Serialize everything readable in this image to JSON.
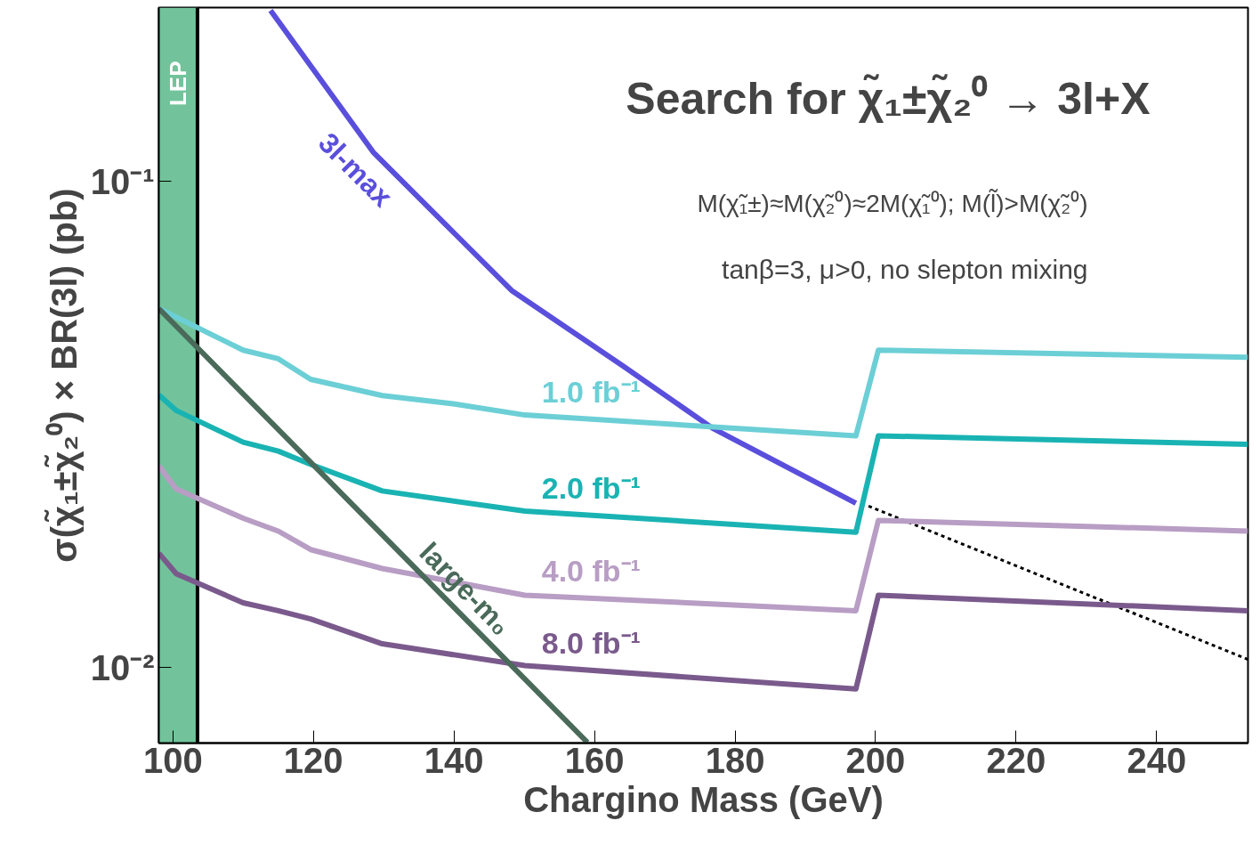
{
  "chart_data": {
    "type": "line",
    "title": "Search for χ̃₁±χ̃₂⁰ → 3l+X",
    "xlabel": "Chargino Mass (GeV)",
    "ylabel": "σ(χ̃₁±χ̃₂⁰) × BR(3l) (pb)",
    "annotations": [
      "M(χ̃₁±)≈M(χ̃₂⁰)≈2M(χ̃₁⁰); M(l̃)>M(χ̃₂⁰)",
      "tanβ=3, μ>0, no slepton mixing"
    ],
    "log": "y",
    "xlim": [
      98,
      253
    ],
    "ylim": [
      0.007,
      0.228
    ],
    "xticks": [
      100,
      120,
      140,
      160,
      180,
      200,
      220,
      240
    ],
    "yticks": [
      {
        "value": 0.01,
        "label": "10⁻²"
      },
      {
        "value": 0.1,
        "label": "10⁻¹"
      }
    ],
    "grid": false,
    "line_style": "solid",
    "marker": "none",
    "bands": [
      {
        "axis": "x",
        "from": 98,
        "to": 103.5,
        "label": "LEP",
        "color": "#72c39b"
      }
    ],
    "ref_lines": [
      {
        "axis": "x",
        "value": 103.5,
        "color": "#000000"
      }
    ],
    "series": [
      {
        "name": "3l-max",
        "color": "#5a4fdc",
        "x": [
          113.9,
          128.5,
          148.2,
          164.1,
          176.8,
          197.2
        ],
        "values": [
          0.225,
          0.115,
          0.0597,
          0.0417,
          0.0311,
          0.0218
        ]
      },
      {
        "color": "#000000",
        "line_style": "dashed",
        "x": [
          199,
          253
        ],
        "values": [
          0.0215,
          0.0104
        ]
      },
      {
        "name": "1.0 fb⁻¹",
        "color": "#6ccfd6",
        "x": [
          98,
          110,
          115,
          119.6,
          129.8,
          139.9,
          150.1,
          197.2,
          200.4,
          253
        ],
        "values": [
          0.0548,
          0.045,
          0.0432,
          0.0392,
          0.0363,
          0.0349,
          0.0331,
          0.03,
          0.045,
          0.0435
        ]
      },
      {
        "name": "2.0 fb⁻¹",
        "color": "#1ab3b3",
        "x": [
          98,
          100.5,
          110,
          115,
          119.6,
          129.8,
          150.1,
          197.2,
          200.4,
          253
        ],
        "values": [
          0.0364,
          0.0338,
          0.0291,
          0.0279,
          0.0262,
          0.0231,
          0.021,
          0.019,
          0.03,
          0.0288
        ]
      },
      {
        "name": "4.0 fb⁻¹",
        "color": "#b89dc4",
        "x": [
          98,
          100.5,
          110,
          115,
          119.6,
          129.8,
          150.1,
          197.2,
          200.4,
          253
        ],
        "values": [
          0.026,
          0.0233,
          0.0203,
          0.0191,
          0.0175,
          0.016,
          0.0141,
          0.0131,
          0.0201,
          0.0191
        ]
      },
      {
        "name": "8.0 fb⁻¹",
        "color": "#7a5a8c",
        "x": [
          98,
          100.5,
          110,
          115,
          119.6,
          129.8,
          150.1,
          197.2,
          200.4,
          253
        ],
        "values": [
          0.0172,
          0.0156,
          0.0136,
          0.0131,
          0.0126,
          0.0112,
          0.0101,
          0.00904,
          0.0141,
          0.0131
        ]
      },
      {
        "name": "large-m₀",
        "color": "#4a6a5a",
        "x": [
          98,
          159
        ],
        "values": [
          0.0548,
          0.00702
        ]
      }
    ]
  }
}
